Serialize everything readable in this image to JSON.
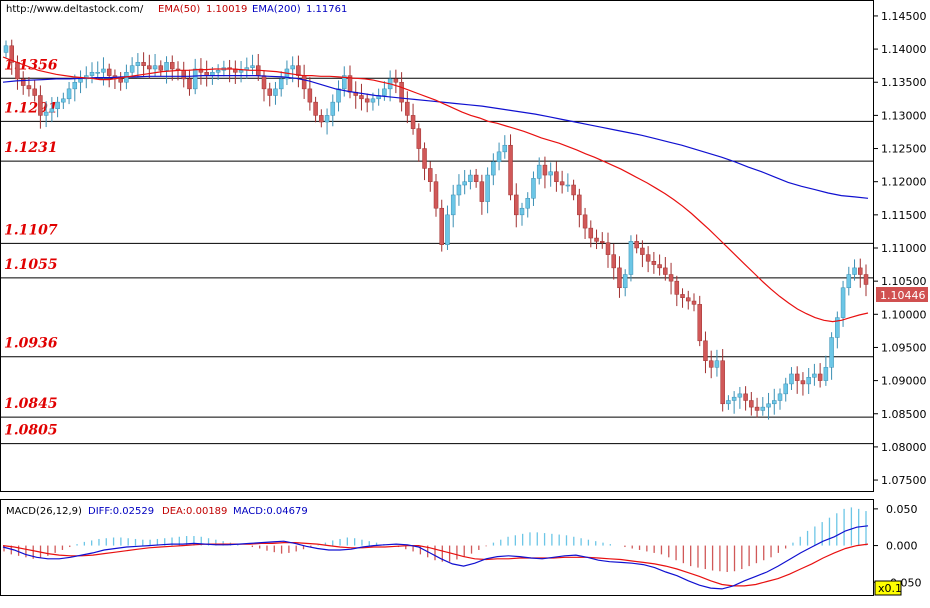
{
  "header": {
    "url": "http://www.deltastock.com/",
    "ema50_label": "EMA(50)",
    "ema50_value": "1.10019",
    "ema200_label": "EMA(200)",
    "ema200_value": "1.11761"
  },
  "macd_header": {
    "name": "MACD(26,12,9)",
    "diff": "DIFF:0.02529",
    "dea": "DEA:0.00189",
    "macd": "MACD:0.04679"
  },
  "current_price": "1.10446",
  "zoom_label": "x0.1",
  "colors": {
    "up": "#6cc6e6",
    "down": "#d05858",
    "ema50": "#e81010",
    "ema200": "#1010d0",
    "level_text": "#e00000",
    "price_box": "#d05050"
  },
  "chart_data": {
    "type": "candlestick",
    "price_axis": {
      "range": [
        1.0735,
        1.1468
      ],
      "ticks": [
        "1.14500",
        "1.14000",
        "1.13500",
        "1.13000",
        "1.12500",
        "1.12000",
        "1.11500",
        "1.11000",
        "1.10500",
        "1.10000",
        "1.09500",
        "1.09000",
        "1.08500",
        "1.08000",
        "1.07500"
      ]
    },
    "levels": [
      {
        "label": "1.1356",
        "value": 1.1356
      },
      {
        "label": "1.1291",
        "value": 1.1291
      },
      {
        "label": "1.1231",
        "value": 1.1231
      },
      {
        "label": "1.1107",
        "value": 1.1107
      },
      {
        "label": "1.1055",
        "value": 1.1055
      },
      {
        "label": "1.0936",
        "value": 1.0936
      },
      {
        "label": "1.0845",
        "value": 1.0845
      },
      {
        "label": "1.0805",
        "value": 1.0805
      }
    ],
    "closes": [
      1.1405,
      1.138,
      1.1355,
      1.1345,
      1.134,
      1.133,
      1.13,
      1.1305,
      1.131,
      1.132,
      1.1325,
      1.134,
      1.135,
      1.1355,
      1.136,
      1.1365,
      1.1365,
      1.137,
      1.136,
      1.1355,
      1.135,
      1.1365,
      1.1375,
      1.138,
      1.1375,
      1.137,
      1.1375,
      1.1368,
      1.138,
      1.137,
      1.1368,
      1.1355,
      1.134,
      1.137,
      1.1365,
      1.136,
      1.1365,
      1.1368,
      1.1372,
      1.137,
      1.1365,
      1.1368,
      1.1372,
      1.1375,
      1.136,
      1.134,
      1.133,
      1.134,
      1.1355,
      1.137,
      1.1375,
      1.136,
      1.134,
      1.132,
      1.13,
      1.129,
      1.13,
      1.132,
      1.134,
      1.136,
      1.1335,
      1.133,
      1.1325,
      1.132,
      1.1325,
      1.133,
      1.134,
      1.1355,
      1.135,
      1.132,
      1.13,
      1.128,
      1.125,
      1.122,
      1.12,
      1.116,
      1.1105,
      1.115,
      1.118,
      1.1195,
      1.12,
      1.121,
      1.12,
      1.117,
      1.121,
      1.123,
      1.1245,
      1.1255,
      1.118,
      1.115,
      1.116,
      1.1175,
      1.1205,
      1.1225,
      1.121,
      1.1215,
      1.12,
      1.1195,
      1.1195,
      1.118,
      1.115,
      1.113,
      1.1115,
      1.111,
      1.1108,
      1.109,
      1.107,
      1.104,
      1.106,
      1.111,
      1.11,
      1.109,
      1.108,
      1.1075,
      1.107,
      1.106,
      1.105,
      1.103,
      1.1025,
      1.102,
      1.1015,
      1.096,
      1.093,
      1.092,
      1.093,
      1.0865,
      1.087,
      1.0875,
      1.088,
      1.087,
      1.086,
      1.0855,
      1.086,
      1.0865,
      1.087,
      1.088,
      1.0895,
      1.091,
      1.09,
      1.0895,
      1.0905,
      1.091,
      1.09,
      1.092,
      1.0965,
      1.0995,
      1.104,
      1.106,
      1.107,
      1.106,
      1.1045
    ],
    "ema50": [
      1.1388,
      1.1383,
      1.1378,
      1.1373,
      1.1368,
      1.1365,
      1.1362,
      1.136,
      1.1358,
      1.1357,
      1.1356,
      1.1354,
      1.1354,
      1.1356,
      1.1358,
      1.136,
      1.1362,
      1.1364,
      1.1366,
      1.1367,
      1.1368,
      1.1368,
      1.1369,
      1.1369,
      1.137,
      1.137,
      1.137,
      1.1369,
      1.1368,
      1.1368,
      1.1367,
      1.1366,
      1.1364,
      1.1362,
      1.136,
      1.136,
      1.1359,
      1.1359,
      1.1358,
      1.1357,
      1.1356,
      1.1355,
      1.1353,
      1.135,
      1.1347,
      1.1343,
      1.1338,
      1.1333,
      1.1328,
      1.1323,
      1.1317,
      1.1311,
      1.1305,
      1.13,
      1.1296,
      1.1291,
      1.1288,
      1.1284,
      1.128,
      1.1276,
      1.1271,
      1.1266,
      1.1262,
      1.1258,
      1.1253,
      1.1248,
      1.1242,
      1.1237,
      1.1231,
      1.1225,
      1.1219,
      1.1212,
      1.1205,
      1.1198,
      1.119,
      1.1182,
      1.1173,
      1.1163,
      1.1152,
      1.114,
      1.1128,
      1.1115,
      1.1102,
      1.1089,
      1.1076,
      1.1063,
      1.105,
      1.1038,
      1.1027,
      1.1017,
      1.1008,
      1.1001,
      1.0995,
      1.0991,
      1.0989,
      1.0991,
      1.0995,
      1.0999,
      1.1002
    ],
    "ema200": [
      1.135,
      1.1352,
      1.1353,
      1.1354,
      1.1355,
      1.1355,
      1.1356,
      1.1357,
      1.1357,
      1.1358,
      1.1358,
      1.1359,
      1.1359,
      1.1359,
      1.1359,
      1.136,
      1.136,
      1.136,
      1.136,
      1.136,
      1.1359,
      1.1358,
      1.1356,
      1.1352,
      1.1346,
      1.134,
      1.1336,
      1.1333,
      1.133,
      1.1328,
      1.1326,
      1.1324,
      1.1322,
      1.132,
      1.1318,
      1.1316,
      1.1314,
      1.1311,
      1.1308,
      1.1305,
      1.1302,
      1.1298,
      1.1294,
      1.129,
      1.1286,
      1.1282,
      1.1278,
      1.1274,
      1.127,
      1.1265,
      1.126,
      1.1255,
      1.1249,
      1.1243,
      1.1237,
      1.123,
      1.1222,
      1.1215,
      1.1207,
      1.1199,
      1.1193,
      1.1188,
      1.1183,
      1.1179,
      1.1177,
      1.1175
    ],
    "macd": {
      "axis_ticks": [
        "0.050",
        "0.000",
        "-0.050"
      ],
      "range": [
        -0.066,
        0.058
      ],
      "diff": [
        -0.002,
        -0.006,
        -0.012,
        -0.016,
        -0.018,
        -0.018,
        -0.016,
        -0.013,
        -0.01,
        -0.006,
        -0.004,
        -0.002,
        -0.001,
        0.0,
        0.001,
        0.002,
        0.002,
        0.003,
        0.002,
        0.001,
        0.001,
        0.002,
        0.003,
        0.004,
        0.005,
        0.006,
        0.003,
        -0.001,
        -0.004,
        -0.006,
        -0.006,
        -0.005,
        -0.002,
        0.0,
        0.001,
        0.002,
        0.001,
        -0.002,
        -0.01,
        -0.018,
        -0.025,
        -0.028,
        -0.024,
        -0.018,
        -0.015,
        -0.014,
        -0.015,
        -0.017,
        -0.018,
        -0.016,
        -0.014,
        -0.013,
        -0.016,
        -0.02,
        -0.022,
        -0.023,
        -0.024,
        -0.026,
        -0.03,
        -0.036,
        -0.041,
        -0.048,
        -0.054,
        -0.058,
        -0.059,
        -0.055,
        -0.048,
        -0.042,
        -0.036,
        -0.028,
        -0.019,
        -0.01,
        -0.002,
        0.006,
        0.012,
        0.02,
        0.025,
        0.027
      ],
      "dea": [
        0.0,
        -0.002,
        -0.005,
        -0.008,
        -0.011,
        -0.013,
        -0.014,
        -0.014,
        -0.013,
        -0.011,
        -0.009,
        -0.007,
        -0.005,
        -0.003,
        -0.002,
        -0.001,
        0.0,
        0.001,
        0.002,
        0.002,
        0.002,
        0.002,
        0.002,
        0.003,
        0.003,
        0.004,
        0.004,
        0.003,
        0.002,
        0.0,
        -0.002,
        -0.003,
        -0.003,
        -0.002,
        -0.002,
        -0.001,
        0.0,
        0.0,
        -0.003,
        -0.007,
        -0.011,
        -0.015,
        -0.018,
        -0.019,
        -0.018,
        -0.018,
        -0.017,
        -0.017,
        -0.017,
        -0.017,
        -0.016,
        -0.016,
        -0.016,
        -0.017,
        -0.018,
        -0.019,
        -0.021,
        -0.023,
        -0.025,
        -0.028,
        -0.032,
        -0.037,
        -0.042,
        -0.048,
        -0.053,
        -0.055,
        -0.055,
        -0.053,
        -0.049,
        -0.045,
        -0.039,
        -0.032,
        -0.025,
        -0.017,
        -0.01,
        -0.004,
        0.0,
        0.002
      ],
      "hist": [
        -0.008,
        -0.012,
        -0.014,
        -0.016,
        -0.018,
        -0.017,
        -0.014,
        -0.01,
        -0.006,
        -0.002,
        0.002,
        0.005,
        0.007,
        0.009,
        0.01,
        0.011,
        0.011,
        0.01,
        0.009,
        0.008,
        0.008,
        0.009,
        0.01,
        0.011,
        0.012,
        0.013,
        0.013,
        0.012,
        0.01,
        0.008,
        0.006,
        0.004,
        0.002,
        0.0,
        -0.002,
        -0.004,
        -0.007,
        -0.009,
        -0.011,
        -0.01,
        -0.008,
        -0.005,
        -0.002,
        0.001,
        0.004,
        0.007,
        0.009,
        0.011,
        0.01,
        0.008,
        0.006,
        0.004,
        0.002,
        0.0,
        -0.002,
        -0.005,
        -0.008,
        -0.012,
        -0.016,
        -0.02,
        -0.022,
        -0.022,
        -0.019,
        -0.015,
        -0.011,
        -0.006,
        -0.001,
        0.004,
        0.008,
        0.012,
        0.014,
        0.016,
        0.018,
        0.018,
        0.017,
        0.016,
        0.015,
        0.014,
        0.012,
        0.01,
        0.008,
        0.006,
        0.004,
        0.002,
        0.0,
        -0.002,
        -0.004,
        -0.006,
        -0.008,
        -0.01,
        -0.012,
        -0.016,
        -0.02,
        -0.024,
        -0.028,
        -0.03,
        -0.032,
        -0.034,
        -0.035,
        -0.036,
        -0.035,
        -0.032,
        -0.028,
        -0.024,
        -0.02,
        -0.016,
        -0.01,
        -0.004,
        0.004,
        0.012,
        0.02,
        0.026,
        0.032,
        0.038,
        0.044,
        0.05,
        0.052,
        0.05,
        0.047
      ]
    }
  }
}
